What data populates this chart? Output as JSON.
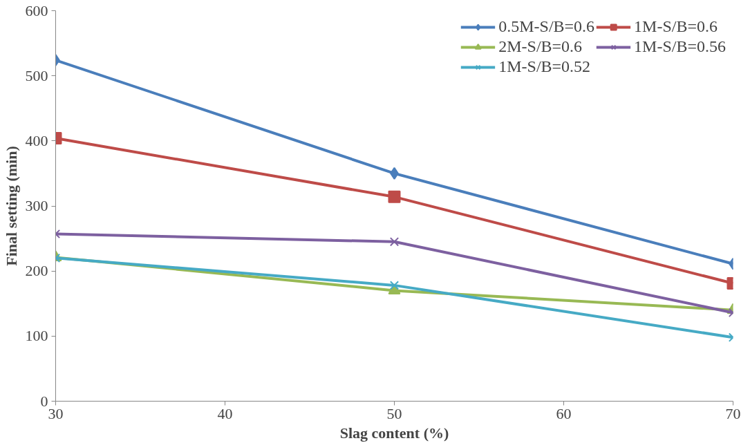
{
  "chart_data": {
    "type": "line",
    "xlabel": "Slag content (%)",
    "ylabel": "Final setting (min)",
    "x": [
      30,
      50,
      70
    ],
    "series": [
      {
        "name": "0.5M-S/B=0.6",
        "color": "#4a7ebb",
        "marker": "diamond",
        "values": [
          524,
          350,
          211
        ]
      },
      {
        "name": "1M-S/B=0.6",
        "color": "#be4b48",
        "marker": "square",
        "values": [
          404,
          314,
          181
        ]
      },
      {
        "name": "2M-S/B=0.6",
        "color": "#98b954",
        "marker": "triangle",
        "values": [
          221,
          170,
          140
        ]
      },
      {
        "name": "1M-S/B=0.56",
        "color": "#7d60a0",
        "marker": "cross",
        "values": [
          257,
          245,
          136
        ]
      },
      {
        "name": "1M-S/B=0.52",
        "color": "#46aac5",
        "marker": "cross",
        "values": [
          220,
          178,
          98
        ]
      }
    ],
    "xlim": [
      30,
      70
    ],
    "xticks": [
      30,
      40,
      50,
      60,
      70
    ],
    "ylim": [
      0,
      600
    ],
    "yticks": [
      0,
      100,
      200,
      300,
      400,
      500,
      600
    ],
    "grid": false,
    "legend": "top right",
    "line_style": "solid"
  }
}
